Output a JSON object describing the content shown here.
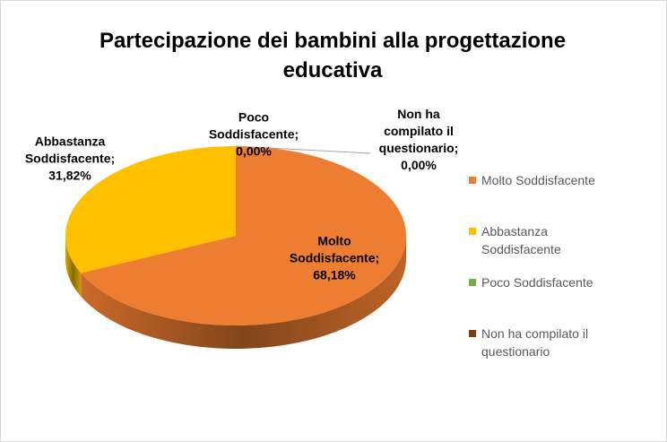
{
  "chart_data": {
    "type": "pie3d",
    "title": "Partecipazione dei bambini alla progettazione educativa",
    "categories": [
      "Molto Soddisfacente",
      "Abbastanza Soddisfacente",
      "Poco Soddisfacente",
      "Non ha compilato il questionario"
    ],
    "values": [
      68.18,
      31.82,
      0,
      0
    ],
    "value_labels": [
      "68,18%",
      "31,82%",
      "0,00%",
      "0,00%"
    ],
    "data_label_separator": ";",
    "colors": [
      "#ED7D31",
      "#FFC000",
      "#70AD47",
      "#843C0C"
    ],
    "legend": "right"
  }
}
